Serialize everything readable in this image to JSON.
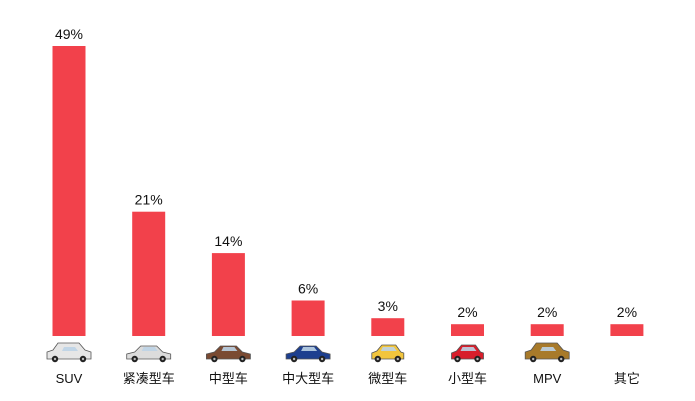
{
  "chart_data": {
    "type": "bar",
    "categories": [
      "SUV",
      "紧凑型车",
      "中型车",
      "中大型车",
      "微型车",
      "小型车",
      "MPV",
      "其它"
    ],
    "values": [
      49,
      21,
      14,
      6,
      3,
      2,
      2,
      2
    ],
    "value_labels": [
      "49%",
      "21%",
      "14%",
      "6%",
      "3%",
      "2%",
      "2%",
      "2%"
    ],
    "category_icons": [
      "suv-car-icon",
      "compact-car-icon",
      "midsize-car-icon",
      "large-car-icon",
      "mini-car-icon",
      "small-car-icon",
      "mpv-car-icon",
      ""
    ],
    "icon_colors": [
      "#e6e6e6",
      "#dcdcdc",
      "#7a4a32",
      "#1d3f8f",
      "#f2c53d",
      "#d81e2b",
      "#a87a2a",
      ""
    ],
    "bar_color": "#f2414b",
    "ylim": [
      0,
      49
    ],
    "grid": false,
    "legend": "none"
  }
}
